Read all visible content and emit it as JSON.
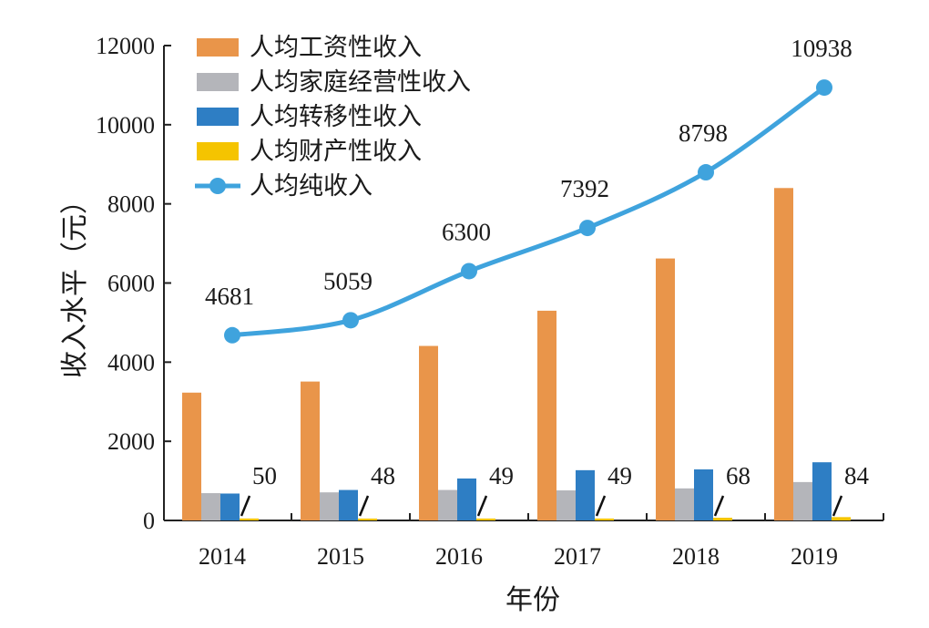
{
  "chart_data": {
    "type": "bar+line",
    "title": "",
    "xlabel": "年份",
    "ylabel": "收入水平（元）",
    "ylim": [
      0,
      12000
    ],
    "yticks": [
      0,
      2000,
      4000,
      6000,
      8000,
      10000,
      12000
    ],
    "categories": [
      "2014",
      "2015",
      "2016",
      "2017",
      "2018",
      "2019"
    ],
    "legend_position": "top-left",
    "series": [
      {
        "name": "人均工资性收入",
        "kind": "bar",
        "color": "#E9954A",
        "values": [
          3230,
          3510,
          4410,
          5300,
          6620,
          8400
        ]
      },
      {
        "name": "人均家庭经营性收入",
        "kind": "bar",
        "color": "#B4B5BA",
        "values": [
          690,
          710,
          770,
          760,
          810,
          970
        ]
      },
      {
        "name": "人均转移性收入",
        "kind": "bar",
        "color": "#2E7EC4",
        "values": [
          680,
          770,
          1060,
          1270,
          1290,
          1470
        ]
      },
      {
        "name": "人均财产性收入",
        "kind": "bar",
        "color": "#F5C400",
        "values": [
          50,
          48,
          49,
          49,
          68,
          84
        ],
        "labels": [
          "50",
          "48",
          "49",
          "49",
          "68",
          "84"
        ]
      },
      {
        "name": "人均纯收入",
        "kind": "line",
        "color": "#3FA3DD",
        "values": [
          4681,
          5059,
          6300,
          7392,
          8798,
          10938
        ],
        "labels": [
          "4681",
          "5059",
          "6300",
          "7392",
          "8798",
          "10938"
        ]
      }
    ]
  }
}
